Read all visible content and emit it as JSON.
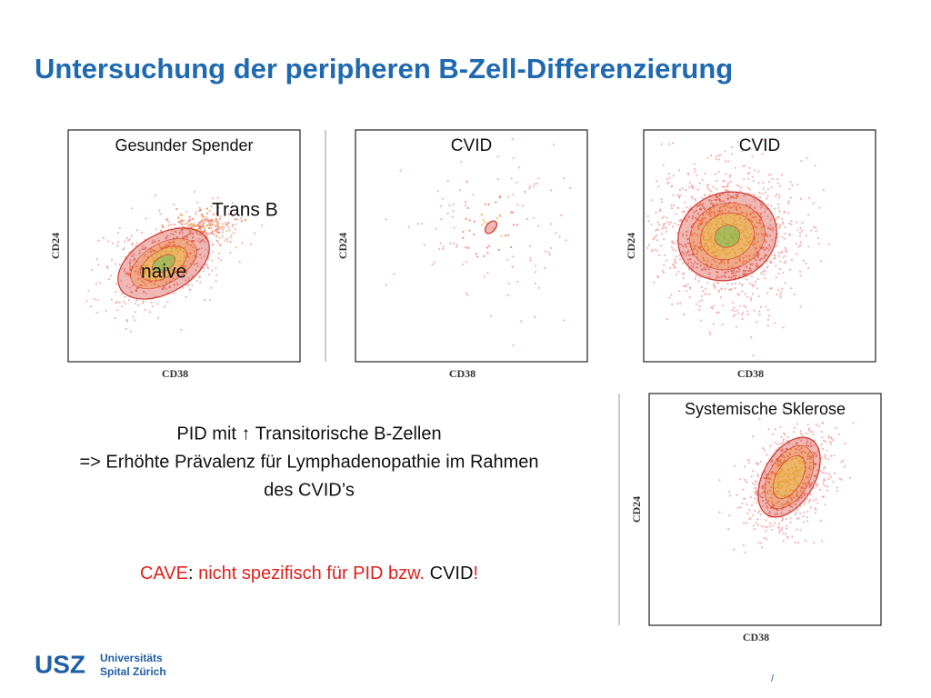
{
  "title": "Untersuchung der peripheren B-Zell-Differenzierung",
  "panels": [
    {
      "title": "Gesunder Spender",
      "y_label": "CD24",
      "x_label": "CD38",
      "annotations": [
        "Trans B",
        "naive"
      ]
    },
    {
      "title": "CVID",
      "y_label": "CD24",
      "x_label": "CD38"
    },
    {
      "title": "CVID",
      "y_label": "CD24",
      "x_label": "CD38"
    },
    {
      "title": "Systemische Sklerose",
      "y_label": "CD24",
      "x_label": "CD38"
    }
  ],
  "body": {
    "lines": [
      "PID mit ↑ Transitorische B-Zellen",
      "=> Erhöhte Prävalenz für Lymphadenopathie im Rahmen",
      "des CVID’s"
    ],
    "cave": [
      "CAVE",
      ": ",
      "nicht spezifisch für PID bzw. ",
      "CVID",
      "!"
    ]
  },
  "logo": {
    "mark": "USZ",
    "line1": "Universitäts",
    "line2": "Spital Zürich"
  },
  "page_number": "/"
}
